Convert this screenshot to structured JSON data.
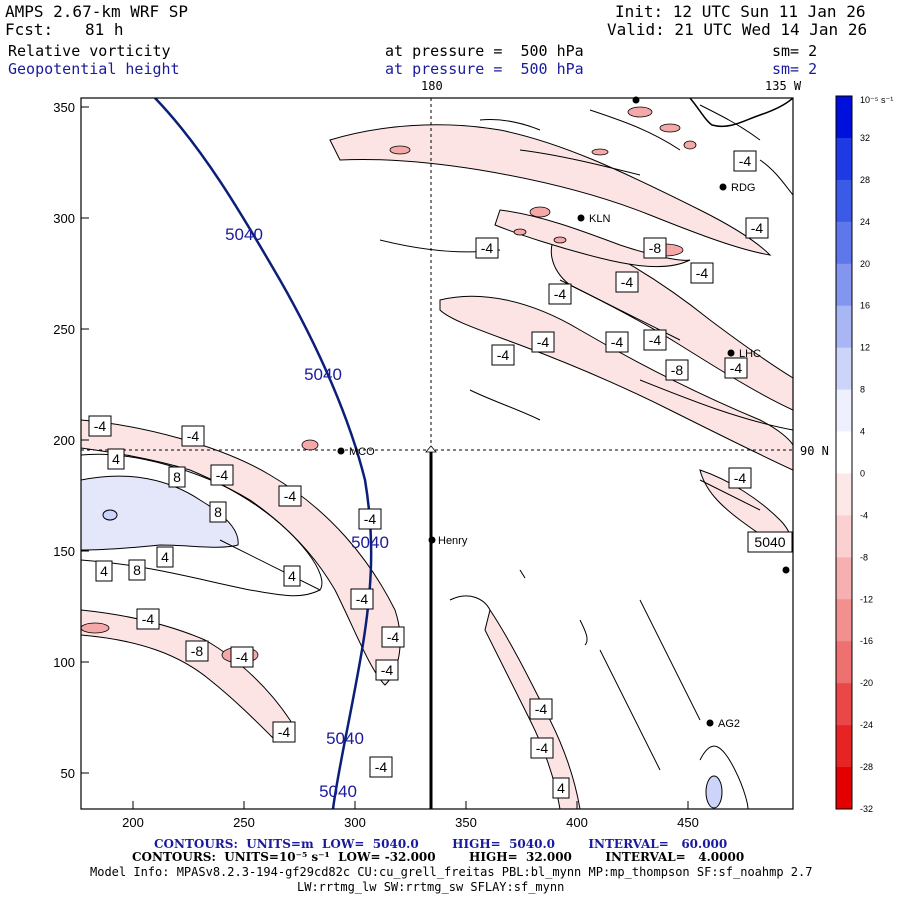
{
  "header": {
    "title": "AMPS 2.67-km WRF SP",
    "init": "Init: 12 UTC Sun 11 Jan 26",
    "fcst_label": "Fcst:",
    "fcst_value": "81 h",
    "valid": "Valid: 21 UTC Wed 14 Jan 26",
    "field1_name": "Relative vorticity",
    "field1_pressure": "at pressure =  500 hPa",
    "field1_sm": "sm= 2",
    "field2_name": "Geopotential height",
    "field2_pressure": "at pressure =  500 hPa",
    "field2_sm": "sm= 2"
  },
  "map": {
    "meridian_180": "180",
    "meridian_135w": "135 W",
    "parallel_90n": "90 N",
    "x_ticks": [
      "200",
      "250",
      "300",
      "350",
      "400",
      "450"
    ],
    "y_ticks": [
      "350",
      "300",
      "250",
      "200",
      "150",
      "100",
      "50"
    ],
    "stations": [
      {
        "code": "RDG"
      },
      {
        "code": "KLN"
      },
      {
        "code": "LHC"
      },
      {
        "code": "MCO"
      },
      {
        "code": "Henry"
      },
      {
        "code": "AG2"
      }
    ],
    "height_labels": [
      "5040",
      "5040",
      "5040",
      "5040",
      "5040"
    ],
    "vort_labels": [
      "-4",
      "-4",
      "-8",
      "-4",
      "-4",
      "-4",
      "-4",
      "-4",
      "-4",
      "-4",
      "-8",
      "-4",
      "-4",
      "-4",
      "-4",
      "-4",
      "4",
      "8",
      "-4",
      "-4",
      "8",
      "-4",
      "5040",
      "4",
      "4",
      "8",
      "4",
      "-4",
      "-4",
      "-4",
      "-8",
      "-4",
      "-4",
      "-4",
      "-4",
      "-4",
      "-4",
      "4"
    ]
  },
  "colorbar": {
    "unit": "10⁻⁵ s⁻¹",
    "labels": [
      "32",
      "28",
      "24",
      "20",
      "16",
      "12",
      "8",
      "4",
      "0",
      "-4",
      "-8",
      "-12",
      "-16",
      "-20",
      "-24",
      "-28",
      "-32"
    ],
    "colors": [
      "#0010dc",
      "#1e3ae4",
      "#3c5ae8",
      "#5e78ec",
      "#8296f0",
      "#a8b6f4",
      "#ccd4fa",
      "#eef0fd",
      "#ffffff",
      "#fde8e8",
      "#fad0d0",
      "#f6b0b0",
      "#f29090",
      "#ee7070",
      "#ea4848",
      "#e62424",
      "#e20000"
    ]
  },
  "footer": {
    "line1": "CONTOURS:  UNITS=m  LOW=  5040.0        HIGH=  5040.0        INTERVAL=   60.000",
    "line2": "CONTOURS:  UNITS=10⁻⁵ s⁻¹  LOW= -32.000        HIGH=  32.000        INTERVAL=   4.0000",
    "line3": "Model Info: MPASv8.2.3-194-gf29cd82c CU:cu_grell_freitas PBL:bl_mynn MP:mp_thompson SF:sf_noahmp 2.7",
    "line4": "LW:rrtmg_lw SW:rrtmg_sw SFLAY:sf_mynn"
  }
}
